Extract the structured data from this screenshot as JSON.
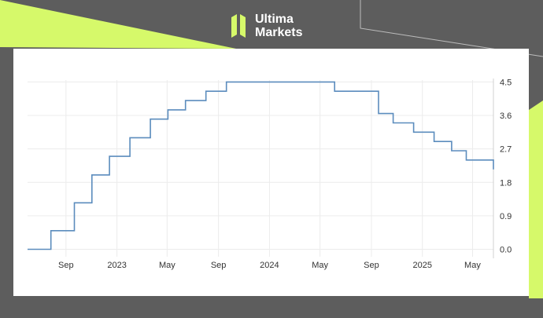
{
  "brand": {
    "name_line1": "Ultima",
    "name_line2": "Markets",
    "accent": "#d6f96a",
    "background": "#5d5d5d"
  },
  "chart_data": {
    "type": "line",
    "step": true,
    "title": "",
    "xlabel": "",
    "ylabel": "",
    "line_color": "#5b8cbd",
    "grid": true,
    "y_axis_side": "right",
    "xlim": [
      "2022-06-01",
      "2025-06-20"
    ],
    "ylim": [
      -0.2,
      4.55
    ],
    "yticks": [
      0.0,
      0.9,
      1.8,
      2.7,
      3.6,
      4.5
    ],
    "ytick_labels": [
      "0.0",
      "0.9",
      "1.8",
      "2.7",
      "3.6",
      "4.5"
    ],
    "xticks": [
      "2022-09-01",
      "2023-01-01",
      "2023-05-01",
      "2023-09-01",
      "2024-01-01",
      "2024-05-01",
      "2024-09-01",
      "2025-01-01",
      "2025-05-01"
    ],
    "xtick_labels": [
      "Sep",
      "2023",
      "May",
      "Sep",
      "2024",
      "May",
      "Sep",
      "2025",
      "May"
    ],
    "points": [
      {
        "x": "2022-06-01",
        "y": 0.0
      },
      {
        "x": "2022-07-27",
        "y": 0.5
      },
      {
        "x": "2022-09-21",
        "y": 1.25
      },
      {
        "x": "2022-11-02",
        "y": 2.0
      },
      {
        "x": "2022-12-14",
        "y": 2.5
      },
      {
        "x": "2023-02-01",
        "y": 3.0
      },
      {
        "x": "2023-03-22",
        "y": 3.5
      },
      {
        "x": "2023-05-03",
        "y": 3.75
      },
      {
        "x": "2023-06-14",
        "y": 4.0
      },
      {
        "x": "2023-08-02",
        "y": 4.25
      },
      {
        "x": "2023-09-20",
        "y": 4.5
      },
      {
        "x": "2024-06-05",
        "y": 4.25
      },
      {
        "x": "2024-09-18",
        "y": 3.65
      },
      {
        "x": "2024-10-23",
        "y": 3.4
      },
      {
        "x": "2024-12-11",
        "y": 3.15
      },
      {
        "x": "2025-01-29",
        "y": 2.9
      },
      {
        "x": "2025-03-12",
        "y": 2.65
      },
      {
        "x": "2025-04-16",
        "y": 2.4
      },
      {
        "x": "2025-06-04",
        "y": 2.4
      },
      {
        "x": "2025-06-20",
        "y": 2.15
      }
    ]
  }
}
